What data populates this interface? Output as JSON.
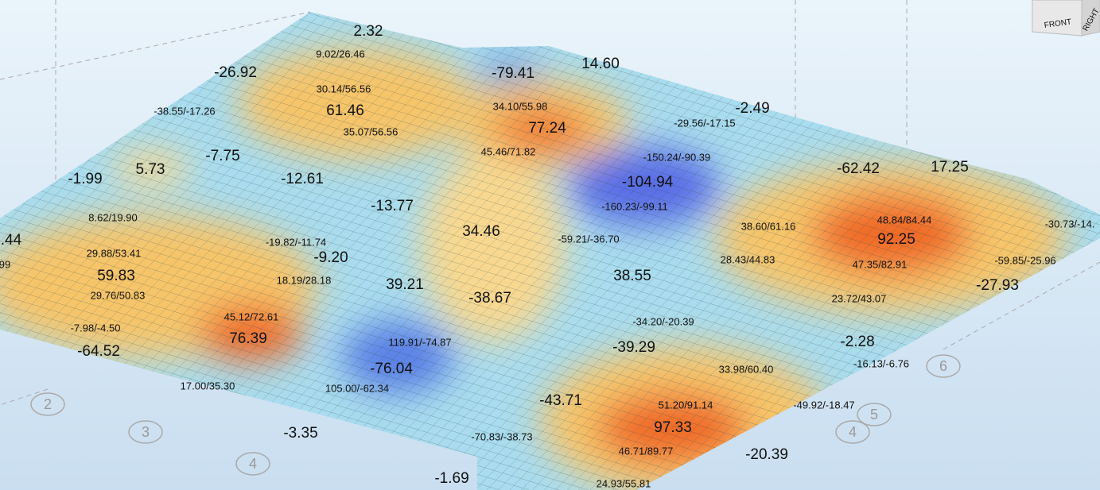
{
  "labels": [
    "2.32",
    "9.02/26.46",
    "-26.92",
    "-79.41",
    "14.60",
    "30.14/56.56",
    "61.46",
    "34.10/55.98",
    "-38.55/-17.26",
    "-2.49",
    "77.24",
    "35.07/56.56",
    "-29.56/-17.15",
    "45.46/71.82",
    "-7.75",
    "5.73",
    "-150.24/-90.39",
    "-62.42",
    "17.25",
    "-1.99",
    "-12.61",
    "-104.94",
    "-13.77",
    "-160.23/-99.11",
    "8.62/19.90",
    "48.84/84.44",
    "-30.73/-14.",
    "38.60/61.16",
    "34.46",
    "92.25",
    ".44",
    "-19.82/-11.74",
    "-59.21/-36.70",
    "29.88/53.41",
    "-9.20",
    "28.43/44.83",
    "-59.85/-25.96",
    "99",
    "47.35/82.91",
    "59.83",
    "18.19/28.18",
    "38.55",
    "39.21",
    "-27.93",
    "29.76/50.83",
    "-38.67",
    "23.72/43.07",
    "45.12/72.61",
    "-34.20/-20.39",
    "-7.98/-4.50",
    "76.39",
    "-2.28",
    "119.91/-74.87",
    "-39.29",
    "-64.52",
    "-16.13/-6.76",
    "-76.04",
    "33.98/60.40",
    "17.00/35.30",
    "105.00/-62.34",
    "-43.71",
    "51.20/91.14",
    "-49.92/-18.47",
    "97.33",
    "-3.35",
    "-70.83/-38.73",
    "46.71/89.77",
    "-20.39",
    "-1.69",
    "24.93/55.81"
  ],
  "grid_bubbles": [
    "2",
    "3",
    "4",
    "4",
    "5",
    "6"
  ],
  "view_cube": {
    "front": "FRONT",
    "right": "RIGHT"
  }
}
